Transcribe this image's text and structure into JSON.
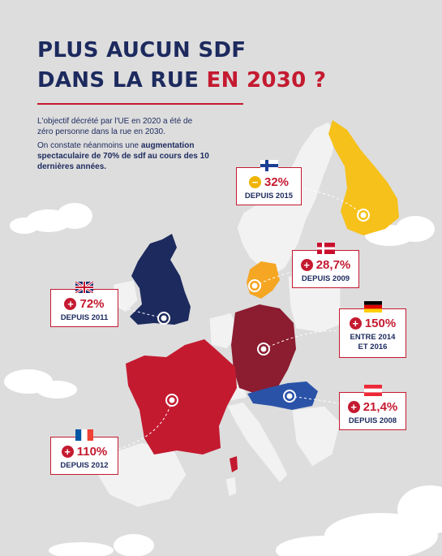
{
  "title": {
    "line1": "PLUS AUCUN SDF",
    "line2_main": "DANS LA RUE ",
    "line2_accent": "EN 2030 ?"
  },
  "intro": {
    "paragraph1": "L'objectif décrété par l'UE en 2020 a été de zéro personne dans la rue en 2030.",
    "paragraph2_prefix": "On constate néanmoins une ",
    "paragraph2_bold": "augmentation spectaculaire de 70% de sdf au cours des 10 dernières années."
  },
  "colors": {
    "navy": "#1c2a5e",
    "red": "#c41a30",
    "maroon": "#8c1c30",
    "yellow": "#f6c11a",
    "orange": "#f5a623",
    "blue": "#2a53a8",
    "land": "#f2f2f2",
    "background": "#dddddd"
  },
  "countries": [
    {
      "name": "finland",
      "sign": "minus",
      "icon": "minus-circle-icon",
      "value": "32%",
      "since": "DEPUIS 2015"
    },
    {
      "name": "denmark",
      "sign": "plus",
      "icon": "plus-circle-icon",
      "value": "28,7%",
      "since": "DEPUIS 2009"
    },
    {
      "name": "uk",
      "sign": "plus",
      "icon": "plus-circle-icon",
      "value": "72%",
      "since": "DEPUIS 2011"
    },
    {
      "name": "germany",
      "sign": "plus",
      "icon": "plus-circle-icon",
      "value": "150%",
      "since": "ENTRE 2014",
      "since2": "ET 2016"
    },
    {
      "name": "austria",
      "sign": "plus",
      "icon": "plus-circle-icon",
      "value": "21,4%",
      "since": "DEPUIS 2008"
    },
    {
      "name": "france",
      "sign": "plus",
      "icon": "plus-circle-icon",
      "value": "110%",
      "since": "DEPUIS 2012"
    }
  ],
  "signs": {
    "plus": "+",
    "minus": "−"
  }
}
